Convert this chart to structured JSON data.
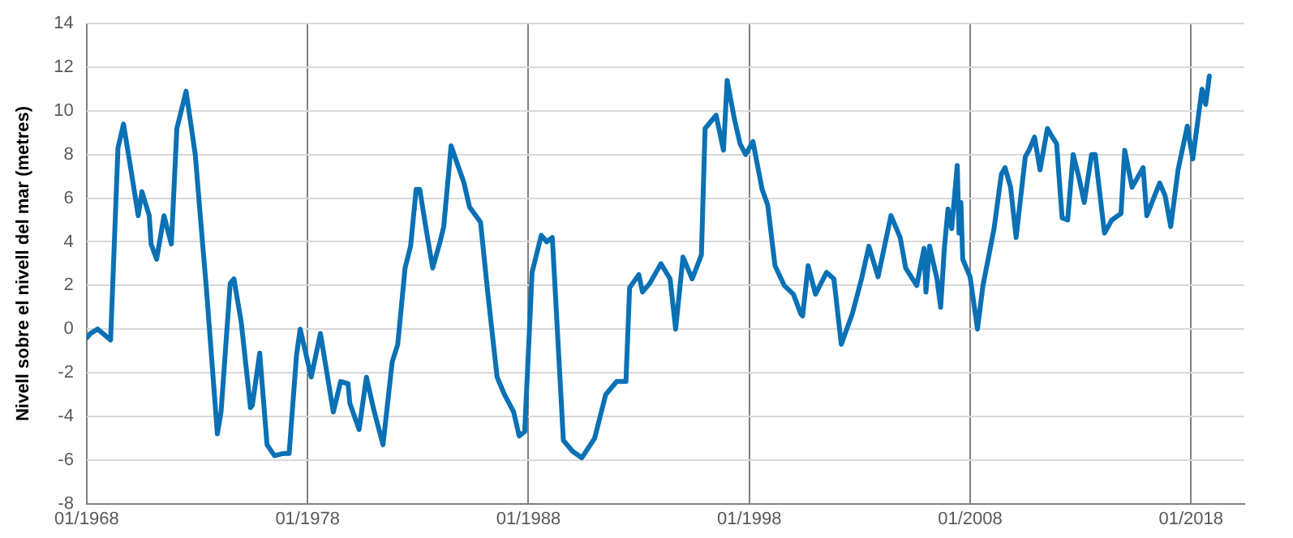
{
  "chart_data": {
    "type": "line",
    "ylabel": "Nivell sobre el nivell del mar (metres)",
    "xlim": [
      "1968-01",
      "2020-06"
    ],
    "ylim": [
      -8,
      14
    ],
    "xticks": [
      {
        "value": "1968-01",
        "label": "01/1968"
      },
      {
        "value": "1978-01",
        "label": "01/1978"
      },
      {
        "value": "1988-01",
        "label": "01/1988"
      },
      {
        "value": "1998-01",
        "label": "01/1998"
      },
      {
        "value": "2008-01",
        "label": "01/2008"
      },
      {
        "value": "2018-01",
        "label": "01/2018"
      }
    ],
    "yticks": [
      -8,
      -6,
      -4,
      -2,
      0,
      2,
      4,
      6,
      8,
      10,
      12,
      14
    ],
    "grid": true,
    "legend": false,
    "marker": "none",
    "line_style": "solid",
    "series": [
      {
        "color": "#0a71b5",
        "x": [
          "1968-01",
          "1968-03",
          "1968-07",
          "1969-02",
          "1969-06",
          "1969-09",
          "1970-02",
          "1970-05",
          "1970-07",
          "1970-11",
          "1970-12",
          "1971-03",
          "1971-07",
          "1971-11",
          "1972-02",
          "1972-07",
          "1972-12",
          "1973-03",
          "1973-06",
          "1973-12",
          "1974-02",
          "1974-07",
          "1974-09",
          "1975-01",
          "1975-06",
          "1975-07",
          "1975-11",
          "1976-03",
          "1976-07",
          "1976-12",
          "1977-03",
          "1977-07",
          "1977-09",
          "1978-03",
          "1978-08",
          "1979-03",
          "1979-07",
          "1979-11",
          "1979-12",
          "1980-05",
          "1980-09",
          "1981-01",
          "1981-06",
          "1981-11",
          "1982-02",
          "1982-06",
          "1982-09",
          "1982-12",
          "1983-02",
          "1983-05",
          "1983-09",
          "1984-01",
          "1984-03",
          "1984-07",
          "1985-02",
          "1985-05",
          "1985-11",
          "1986-03",
          "1986-08",
          "1986-12",
          "1987-05",
          "1987-08",
          "1987-11",
          "1988-03",
          "1988-08",
          "1988-11",
          "1989-02",
          "1989-08",
          "1990-01",
          "1990-06",
          "1991-01",
          "1991-07",
          "1992-01",
          "1992-06",
          "1992-08",
          "1993-01",
          "1993-03",
          "1993-07",
          "1994-01",
          "1994-06",
          "1994-09",
          "1995-01",
          "1995-06",
          "1995-11",
          "1996-01",
          "1996-07",
          "1996-11",
          "1997-01",
          "1997-05",
          "1997-08",
          "1997-11",
          "1998-03",
          "1998-08",
          "1998-11",
          "1999-03",
          "1999-08",
          "2000-01",
          "2000-05",
          "2000-06",
          "2000-09",
          "2001-01",
          "2001-07",
          "2001-11",
          "2002-03",
          "2002-09",
          "2003-02",
          "2003-06",
          "2003-11",
          "2004-06",
          "2004-11",
          "2005-02",
          "2005-08",
          "2005-12",
          "2006-01",
          "2006-03",
          "2006-07",
          "2006-09",
          "2006-11",
          "2007-01",
          "2007-03",
          "2007-06",
          "2007-07",
          "2007-08",
          "2007-09",
          "2008-01",
          "2008-05",
          "2008-08",
          "2009-02",
          "2009-06",
          "2009-08",
          "2009-11",
          "2010-02",
          "2010-07",
          "2010-09",
          "2010-12",
          "2011-03",
          "2011-07",
          "2011-09",
          "2011-12",
          "2012-03",
          "2012-06",
          "2012-09",
          "2012-12",
          "2013-03",
          "2013-07",
          "2013-09",
          "2014-02",
          "2014-06",
          "2014-11",
          "2015-01",
          "2015-05",
          "2015-11",
          "2016-01",
          "2016-08",
          "2016-11",
          "2017-02",
          "2017-06",
          "2017-11",
          "2018-02",
          "2018-07",
          "2018-09",
          "2018-11"
        ],
        "values": [
          -0.4,
          -0.2,
          0,
          -0.5,
          8.3,
          9.4,
          6.8,
          5.2,
          6.3,
          5.2,
          3.9,
          3.2,
          5.2,
          3.9,
          9.2,
          10.9,
          8,
          4.9,
          1.9,
          -4.8,
          -3.8,
          2.1,
          2.3,
          0.3,
          -3.6,
          -3.5,
          -1.1,
          -5.3,
          -5.8,
          -5.7,
          -5.7,
          -1.2,
          0,
          -2.2,
          -0.2,
          -3.8,
          -2.4,
          -2.5,
          -3.4,
          -4.6,
          -2.2,
          -3.7,
          -5.3,
          -1.5,
          -0.7,
          2.8,
          3.8,
          6.4,
          6.4,
          4.8,
          2.8,
          4,
          4.7,
          8.4,
          6.7,
          5.6,
          4.9,
          1.6,
          -2.2,
          -3,
          -3.8,
          -4.9,
          -4.7,
          2.6,
          4.3,
          4,
          4.2,
          -5.1,
          -5.6,
          -5.9,
          -5,
          -3,
          -2.4,
          -2.4,
          1.9,
          2.5,
          1.7,
          2.1,
          3,
          2.3,
          0,
          3.3,
          2.3,
          3.4,
          9.2,
          9.8,
          8.2,
          11.4,
          9.6,
          8.5,
          8,
          8.6,
          6.4,
          5.7,
          2.9,
          2,
          1.6,
          0.7,
          0.6,
          2.9,
          1.6,
          2.6,
          2.3,
          -0.7,
          0.7,
          2.3,
          3.8,
          2.4,
          5.2,
          4.2,
          2.8,
          2,
          3.7,
          1.7,
          3.8,
          2.3,
          1,
          3.7,
          5.5,
          4.6,
          7.5,
          4.4,
          5.8,
          3.2,
          2.4,
          0,
          2,
          4.6,
          7.1,
          7.4,
          6.5,
          4.2,
          7.9,
          8.2,
          8.8,
          7.3,
          9.2,
          8.9,
          8.5,
          5.1,
          5,
          8,
          7,
          5.8,
          8,
          8,
          4.4,
          5,
          5.3,
          8.2,
          6.5,
          7.4,
          5.2,
          6.7,
          6.1,
          4.7,
          7.3,
          9.3,
          7.8,
          11,
          10.3,
          11.6
        ]
      }
    ]
  }
}
